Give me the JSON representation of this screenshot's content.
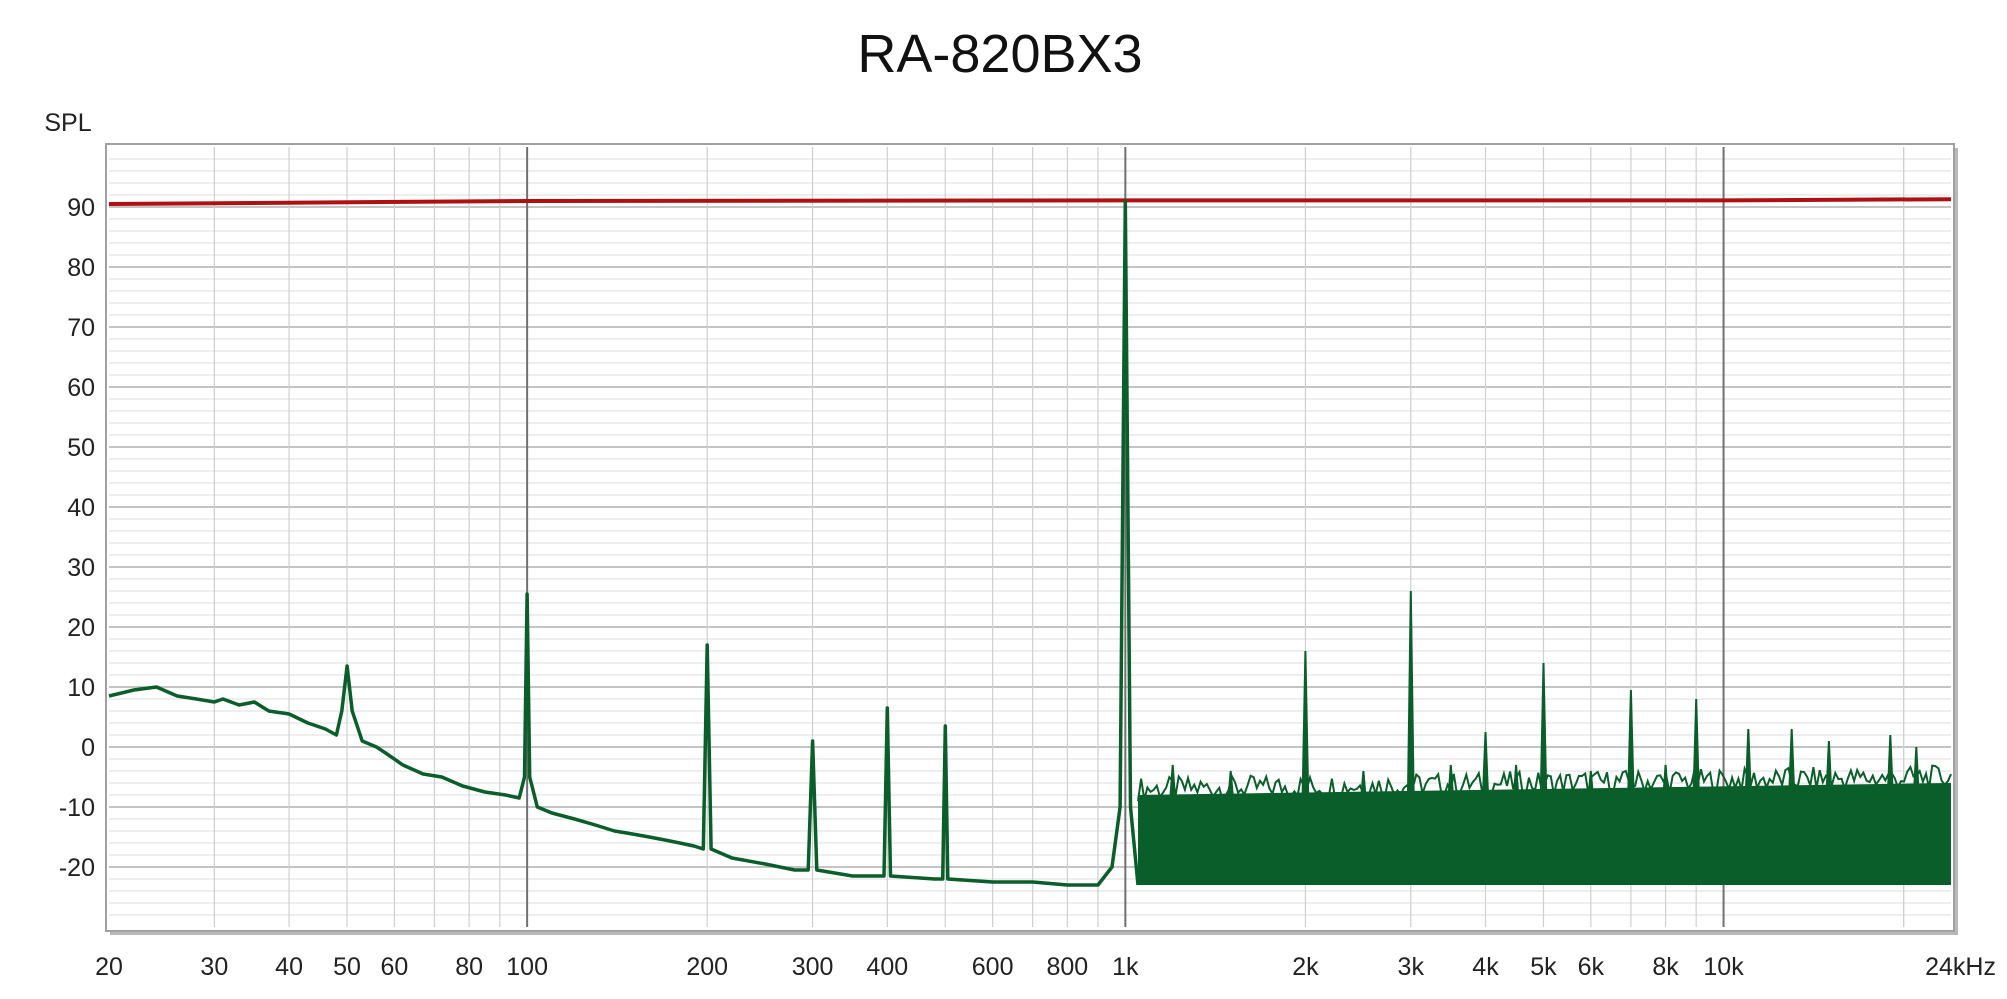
{
  "chart_data": {
    "type": "line",
    "title": "RA-820BX3",
    "ylabel": "SPL",
    "xlabel": "",
    "x_scale": "log",
    "xlim": [
      20,
      24000
    ],
    "ylim": [
      -30,
      100
    ],
    "grid": true,
    "x_ticks": [
      {
        "value": 20,
        "label": "20"
      },
      {
        "value": 30,
        "label": "30"
      },
      {
        "value": 40,
        "label": "40"
      },
      {
        "value": 50,
        "label": "50"
      },
      {
        "value": 60,
        "label": "60"
      },
      {
        "value": 80,
        "label": "80"
      },
      {
        "value": 100,
        "label": "100"
      },
      {
        "value": 200,
        "label": "200"
      },
      {
        "value": 300,
        "label": "300"
      },
      {
        "value": 400,
        "label": "400"
      },
      {
        "value": 600,
        "label": "600"
      },
      {
        "value": 800,
        "label": "800"
      },
      {
        "value": 1000,
        "label": "1k"
      },
      {
        "value": 2000,
        "label": "2k"
      },
      {
        "value": 3000,
        "label": "3k"
      },
      {
        "value": 4000,
        "label": "4k"
      },
      {
        "value": 5000,
        "label": "5k"
      },
      {
        "value": 6000,
        "label": "6k"
      },
      {
        "value": 8000,
        "label": "8k"
      },
      {
        "value": 10000,
        "label": "10k"
      },
      {
        "value": 24000,
        "label": "24kHz"
      }
    ],
    "y_ticks": [
      {
        "value": 90,
        "label": "90"
      },
      {
        "value": 80,
        "label": "80"
      },
      {
        "value": 70,
        "label": "70"
      },
      {
        "value": 60,
        "label": "60"
      },
      {
        "value": 50,
        "label": "50"
      },
      {
        "value": 40,
        "label": "40"
      },
      {
        "value": 30,
        "label": "30"
      },
      {
        "value": 20,
        "label": "20"
      },
      {
        "value": 10,
        "label": "10"
      },
      {
        "value": 0,
        "label": "0"
      },
      {
        "value": -10,
        "label": "-10"
      },
      {
        "value": -20,
        "label": "-20"
      }
    ],
    "series": [
      {
        "color": "#b01010",
        "x": [
          20,
          100,
          1000,
          10000,
          24000
        ],
        "y": [
          90.5,
          91.0,
          91.1,
          91.1,
          91.3
        ]
      },
      {
        "color": "#0a5e2a",
        "fill_band": true,
        "x": [
          20,
          22,
          24,
          26,
          28,
          30,
          31,
          33,
          35,
          37,
          40,
          43,
          46,
          48,
          49,
          50,
          51,
          53,
          56,
          58,
          62,
          67,
          72,
          78,
          85,
          92,
          97,
          99,
          100,
          101,
          104,
          110,
          120,
          130,
          140,
          150,
          160,
          170,
          180,
          190,
          197,
          200,
          203,
          220,
          250,
          280,
          295,
          300,
          305,
          350,
          395,
          400,
          405,
          480,
          495,
          500,
          505,
          600,
          700,
          800,
          900,
          950,
          980,
          1000,
          1020,
          1050
        ],
        "y": [
          8.5,
          9.5,
          10.0,
          8.5,
          8.0,
          7.5,
          8.0,
          7.0,
          7.5,
          6.0,
          5.5,
          4.0,
          3.0,
          2.0,
          6.0,
          13.5,
          6.0,
          1.0,
          0.0,
          -1.0,
          -3.0,
          -4.5,
          -5.0,
          -6.5,
          -7.5,
          -8.0,
          -8.5,
          -5.0,
          25.5,
          -5.0,
          -10.0,
          -11.0,
          -12.0,
          -13.0,
          -14.0,
          -14.5,
          -15.0,
          -15.5,
          -16.0,
          -16.5,
          -17.0,
          17.0,
          -17.0,
          -18.5,
          -19.5,
          -20.5,
          -20.5,
          1.0,
          -20.5,
          -21.5,
          -21.5,
          6.5,
          -21.5,
          -22.0,
          -22.0,
          3.5,
          -22.0,
          -22.5,
          -22.5,
          -23.0,
          -23.0,
          -20.0,
          -10.0,
          91.0,
          -10.0,
          -23.0
        ],
        "band_x": [
          1050,
          24000
        ],
        "band_upper": [
          -8,
          -6
        ],
        "band_lower": [
          -23,
          -23
        ],
        "spikes": [
          {
            "x": 1200,
            "y": -3
          },
          {
            "x": 1500,
            "y": -4
          },
          {
            "x": 2000,
            "y": 16
          },
          {
            "x": 2500,
            "y": -4
          },
          {
            "x": 3000,
            "y": 26
          },
          {
            "x": 3500,
            "y": -3
          },
          {
            "x": 4000,
            "y": 2.5
          },
          {
            "x": 4500,
            "y": -3
          },
          {
            "x": 5000,
            "y": 14
          },
          {
            "x": 6000,
            "y": -4
          },
          {
            "x": 7000,
            "y": 9.5
          },
          {
            "x": 8000,
            "y": -3
          },
          {
            "x": 9000,
            "y": 8
          },
          {
            "x": 11000,
            "y": 3
          },
          {
            "x": 13000,
            "y": 3
          },
          {
            "x": 15000,
            "y": 1
          },
          {
            "x": 19000,
            "y": 2
          },
          {
            "x": 21000,
            "y": 0
          }
        ]
      }
    ]
  }
}
